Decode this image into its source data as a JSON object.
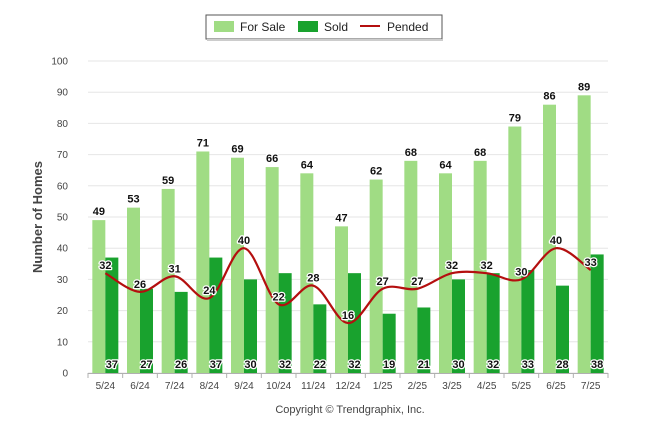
{
  "chart_data": {
    "type": "bar",
    "categories": [
      "5/24",
      "6/24",
      "7/24",
      "8/24",
      "9/24",
      "10/24",
      "11/24",
      "12/24",
      "1/25",
      "2/25",
      "3/25",
      "4/25",
      "5/25",
      "6/25",
      "7/25"
    ],
    "series": [
      {
        "name": "For Sale",
        "type": "bar",
        "color": "#a0dc84",
        "values": [
          49,
          53,
          59,
          71,
          69,
          66,
          64,
          47,
          62,
          68,
          64,
          68,
          79,
          86,
          89
        ]
      },
      {
        "name": "Sold",
        "type": "bar",
        "color": "#19a22e",
        "values": [
          37,
          27,
          26,
          37,
          30,
          32,
          22,
          32,
          19,
          21,
          30,
          32,
          33,
          28,
          38
        ]
      },
      {
        "name": "Pended",
        "type": "line",
        "color": "#b40f0f",
        "values": [
          32,
          26,
          31,
          24,
          40,
          22,
          28,
          16,
          27,
          27,
          32,
          32,
          30,
          40,
          33
        ]
      }
    ],
    "ylabel": "Number of Homes",
    "xlabel": "",
    "ylim": [
      0,
      100
    ],
    "yticks": [
      0,
      10,
      20,
      30,
      40,
      50,
      60,
      70,
      80,
      90,
      100
    ],
    "grid": true,
    "legend_position": "top-center"
  },
  "footer": {
    "copyright": "Copyright © Trendgraphix, Inc."
  }
}
